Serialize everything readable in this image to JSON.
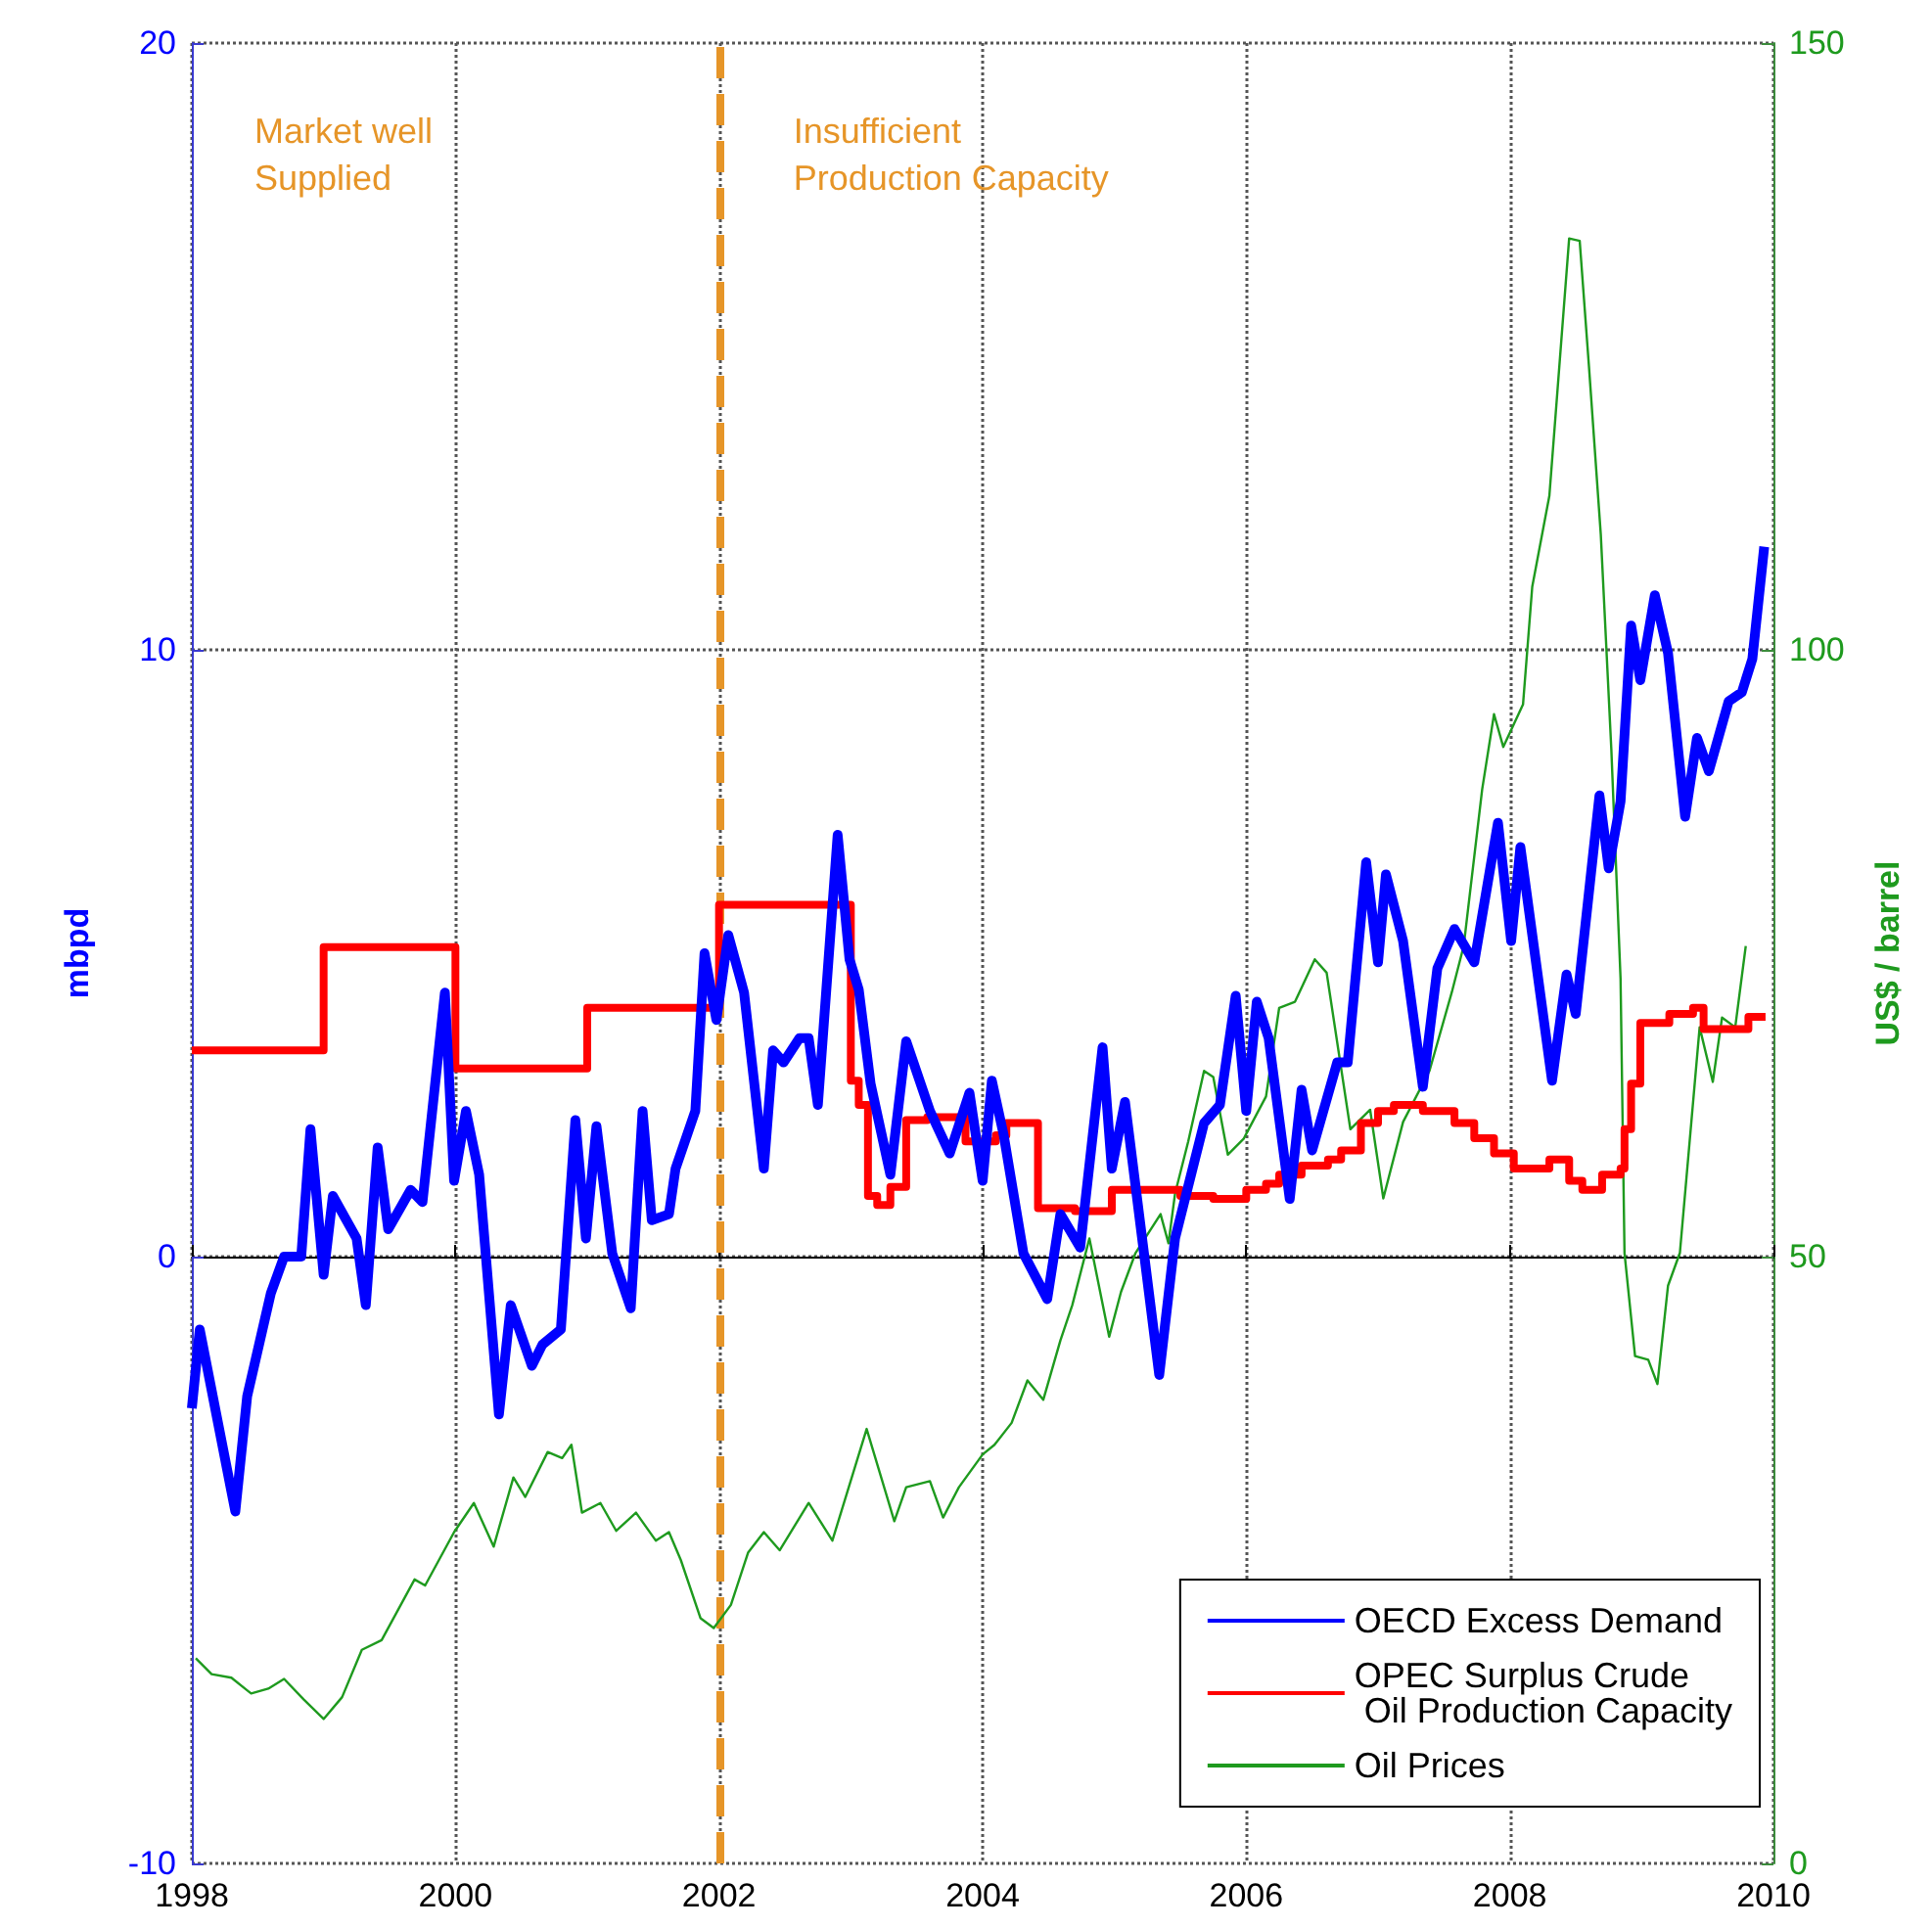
{
  "chart_data": {
    "type": "line",
    "ylabel": "mbpd",
    "y2label": "US$ / barrel",
    "xlim": [
      1998,
      2010
    ],
    "xticks": [
      1998,
      2000,
      2002,
      2004,
      2006,
      2008,
      2010
    ],
    "ylim": [
      -10,
      20
    ],
    "yticks": [
      -10,
      0,
      10,
      20
    ],
    "y2lim": [
      0,
      150
    ],
    "y2ticks": [
      0,
      50,
      100,
      150
    ],
    "grid": true,
    "legend": "bottom right",
    "marker": "none",
    "ref_lines": [
      {
        "axis": "x",
        "value": 2002,
        "color": "#e69528",
        "line_style": "dashed"
      }
    ],
    "annotations": [
      "Market well\nSupplied",
      "Insufficient\nProduction Capacity"
    ],
    "series": [
      {
        "name": "OECD Excess Demand",
        "color": "#0000ff",
        "x": [
          1998.0,
          1998.06,
          1998.33,
          1998.42,
          1998.6,
          1998.7,
          1998.83,
          1998.9,
          1999.0,
          1999.07,
          1999.25,
          1999.32,
          1999.41,
          1999.49,
          1999.66,
          1999.75,
          1999.92,
          1999.99,
          2000.08,
          2000.18,
          2000.33,
          2000.42,
          2000.58,
          2000.66,
          2000.8,
          2000.91,
          2000.99,
          2001.07,
          2001.19,
          2001.33,
          2001.42,
          2001.49,
          2001.62,
          2001.67,
          2001.82,
          2001.89,
          2001.98,
          2002.07,
          2002.19,
          2002.34,
          2002.41,
          2002.49,
          2002.61,
          2002.68,
          2002.75,
          2002.9,
          2002.99,
          2003.06,
          2003.15,
          2003.3,
          2003.42,
          2003.6,
          2003.75,
          2003.9,
          2004.0,
          2004.07,
          2004.16,
          2004.31,
          2004.49,
          2004.59,
          2004.74,
          2004.91,
          2004.98,
          2005.08,
          2005.34,
          2005.46,
          2005.68,
          2005.8,
          2005.92,
          2006.0,
          2006.08,
          2006.17,
          2006.33,
          2006.42,
          2006.5,
          2006.69,
          2006.77,
          2006.91,
          2007.0,
          2007.06,
          2007.19,
          2007.34,
          2007.45,
          2007.58,
          2007.73,
          2007.91,
          2008.01,
          2008.08,
          2008.32,
          2008.43,
          2008.5,
          2008.68,
          2008.75,
          2008.84,
          2008.92,
          2008.99,
          2009.1,
          2009.2,
          2009.33,
          2009.42,
          2009.51,
          2009.66,
          2009.76,
          2009.84,
          2009.93
        ],
        "values": [
          -2.5,
          -1.2,
          -4.2,
          -2.3,
          -0.6,
          0,
          0,
          2.1,
          -0.3,
          1.0,
          0.3,
          -0.8,
          1.8,
          0.45,
          1.1,
          0.9,
          4.35,
          1.25,
          2.4,
          1.35,
          -2.6,
          -0.8,
          -1.8,
          -1.45,
          -1.2,
          2.25,
          0.3,
          2.15,
          0.05,
          -0.85,
          2.4,
          0.6,
          0.7,
          1.45,
          2.4,
          5.0,
          3.9,
          5.3,
          4.35,
          1.45,
          3.4,
          3.2,
          3.6,
          3.6,
          2.5,
          6.95,
          4.9,
          4.4,
          2.85,
          1.35,
          3.55,
          2.4,
          1.7,
          2.7,
          1.25,
          2.9,
          2.0,
          0.05,
          -0.7,
          0.7,
          0.15,
          3.45,
          1.45,
          2.55,
          -1.95,
          0.3,
          2.2,
          2.5,
          4.3,
          2.4,
          4.2,
          3.6,
          0.95,
          2.75,
          1.75,
          3.2,
          3.2,
          6.5,
          4.85,
          6.3,
          5.2,
          2.8,
          4.75,
          5.4,
          4.85,
          7.15,
          5.2,
          6.75,
          2.9,
          4.65,
          4.0,
          7.6,
          6.4,
          7.5,
          10.4,
          9.5,
          10.9,
          9.95,
          7.25,
          8.55,
          8.0,
          9.15,
          9.3,
          9.85,
          11.7
        ]
      },
      {
        "name": "OPEC Surplus Crude\n Oil Production Capacity",
        "color": "#ff0000",
        "type": "step",
        "x": [
          1998.0,
          1999.0,
          2000.0,
          2001.0,
          2002.0,
          2003.0,
          2003.06,
          2003.13,
          2003.2,
          2003.3,
          2003.42,
          2003.58,
          2003.87,
          2004.1,
          2004.18,
          2004.42,
          2004.7,
          2004.98,
          2005.5,
          2005.75,
          2006.0,
          2006.15,
          2006.25,
          2006.42,
          2006.62,
          2006.72,
          2006.87,
          2007.0,
          2007.12,
          2007.34,
          2007.58,
          2007.73,
          2007.88,
          2008.03,
          2008.3,
          2008.45,
          2008.55,
          2008.7,
          2008.84,
          2008.87,
          2008.92,
          2008.99,
          2009.21,
          2009.39,
          2009.47,
          2009.66,
          2009.81,
          2009.94
        ],
        "values": [
          3.4,
          5.1,
          3.1,
          4.1,
          5.8,
          2.9,
          2.5,
          1.0,
          0.85,
          1.15,
          2.25,
          2.3,
          1.9,
          2.0,
          2.2,
          0.8,
          0.75,
          1.1,
          1.0,
          0.95,
          1.1,
          1.2,
          1.35,
          1.5,
          1.6,
          1.75,
          2.2,
          2.4,
          2.5,
          2.4,
          2.2,
          1.95,
          1.7,
          1.45,
          1.6,
          1.25,
          1.1,
          1.35,
          1.45,
          2.1,
          2.85,
          3.85,
          4.0,
          4.1,
          3.75,
          3.75,
          3.95,
          3.95
        ]
      },
      {
        "name": "Oil Prices",
        "color": "#1e9a1e",
        "axis": "y2",
        "x": [
          1998.03,
          1998.15,
          1998.3,
          1998.45,
          1998.58,
          1998.7,
          1998.85,
          1999.0,
          1999.14,
          1999.29,
          1999.44,
          1999.69,
          1999.77,
          1999.99,
          2000.14,
          2000.29,
          2000.44,
          2000.53,
          2000.7,
          2000.81,
          2000.88,
          2000.96,
          2001.1,
          2001.22,
          2001.37,
          2001.52,
          2001.62,
          2001.71,
          2001.86,
          2001.96,
          2002.09,
          2002.22,
          2002.34,
          2002.46,
          2002.68,
          2002.86,
          2003.12,
          2003.33,
          2003.42,
          2003.6,
          2003.7,
          2003.82,
          2004.0,
          2004.09,
          2004.22,
          2004.34,
          2004.46,
          2004.59,
          2004.68,
          2004.81,
          2004.96,
          2005.05,
          2005.16,
          2005.35,
          2005.41,
          2005.46,
          2005.56,
          2005.68,
          2005.75,
          2005.86,
          2005.98,
          2006.15,
          2006.25,
          2006.37,
          2006.52,
          2006.61,
          2006.79,
          2006.94,
          2007.04,
          2007.19,
          2007.39,
          2007.56,
          2007.65,
          2007.79,
          2007.88,
          2007.95,
          2008.1,
          2008.17,
          2008.3,
          2008.38,
          2008.45,
          2008.53,
          2008.6,
          2008.69,
          2008.77,
          2008.84,
          2008.87,
          2008.95,
          2009.05,
          2009.12,
          2009.2,
          2009.29,
          2009.44,
          2009.54,
          2009.61,
          2009.71,
          2009.79
        ],
        "values": [
          16.9,
          15.6,
          15.3,
          14.0,
          14.4,
          15.2,
          13.5,
          11.9,
          13.7,
          17.6,
          18.4,
          23.4,
          22.9,
          27.3,
          29.7,
          26.1,
          31.8,
          30.2,
          33.9,
          33.4,
          34.5,
          28.9,
          29.7,
          27.4,
          28.9,
          26.6,
          27.3,
          25.0,
          20.2,
          19.4,
          21.3,
          25.6,
          27.3,
          25.8,
          29.7,
          26.6,
          35.8,
          28.2,
          31.0,
          31.5,
          28.5,
          31.0,
          33.7,
          34.5,
          36.3,
          39.8,
          38.2,
          43.1,
          46.0,
          51.5,
          43.4,
          47.1,
          50.3,
          53.5,
          51.1,
          55.2,
          59.5,
          65.3,
          64.8,
          58.4,
          59.7,
          63.2,
          70.5,
          71.0,
          74.5,
          73.4,
          60.5,
          62.1,
          54.8,
          61.1,
          65.3,
          71.8,
          75.6,
          88.5,
          94.7,
          92.0,
          95.5,
          105.2,
          112.7,
          124.0,
          133.9,
          133.7,
          123.4,
          109.5,
          91.8,
          72.9,
          50.3,
          41.8,
          41.5,
          39.5,
          47.6,
          50.3,
          68.9,
          64.4,
          69.7,
          68.9,
          75.6
        ]
      }
    ]
  }
}
